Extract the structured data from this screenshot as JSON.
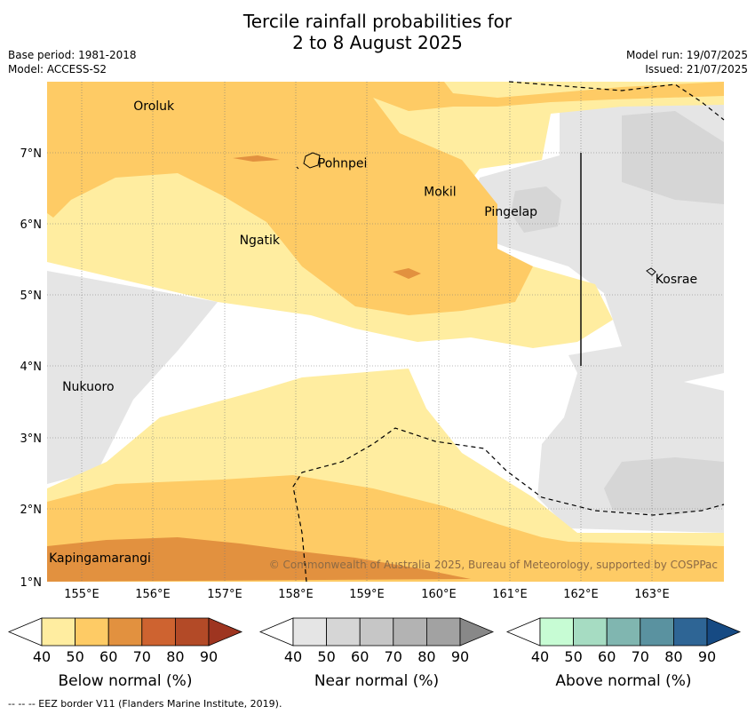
{
  "title_line1": "Tercile rainfall probabilities for",
  "title_line2": "2 to 8 August 2025",
  "base_period": "Base period: 1981-2018",
  "model": "Model: ACCESS-S2",
  "model_run": "Model run: 19/07/2025",
  "issued": "Issued: 21/07/2025",
  "map": {
    "lon_range": [
      154.5,
      164.0
    ],
    "lat_range": [
      1.0,
      8.0
    ],
    "lon_ticks": [
      "155°E",
      "156°E",
      "157°E",
      "158°E",
      "159°E",
      "160°E",
      "161°E",
      "162°E",
      "163°E"
    ],
    "lat_ticks": [
      "1°N",
      "2°N",
      "3°N",
      "4°N",
      "5°N",
      "6°N",
      "7°N"
    ],
    "places": [
      {
        "name": "Oroluk",
        "lon": 155.7,
        "lat": 7.7
      },
      {
        "name": "Pohnpei",
        "lon": 158.2,
        "lat": 6.9
      },
      {
        "name": "Mokil",
        "lon": 159.9,
        "lat": 6.5
      },
      {
        "name": "Pingelap",
        "lon": 160.7,
        "lat": 6.2
      },
      {
        "name": "Ngatik",
        "lon": 157.2,
        "lat": 5.8
      },
      {
        "name": "Kosrae",
        "lon": 163.0,
        "lat": 5.3
      },
      {
        "name": "Nukuoro",
        "lon": 154.8,
        "lat": 3.8
      },
      {
        "name": "Kapingamarangi",
        "lon": 154.8,
        "lat": 1.25
      }
    ],
    "credit": "© Commonwealth of Australia 2025, Bureau of Meteorology, supported by COSPPac"
  },
  "colorbars": [
    {
      "title": "Below normal (%)",
      "ticks": [
        "40",
        "50",
        "60",
        "70",
        "80",
        "90"
      ],
      "colors": [
        "#ffeda0",
        "#fecb65",
        "#e2913f",
        "#ce6330",
        "#b34a27",
        "#9e3520"
      ],
      "arrow": "#9e3520"
    },
    {
      "title": "Near normal (%)",
      "ticks": [
        "40",
        "50",
        "60",
        "70",
        "80",
        "90"
      ],
      "colors": [
        "#e5e5e5",
        "#d6d6d6",
        "#c6c6c6",
        "#b3b3b3",
        "#a2a2a2",
        "#888888"
      ],
      "arrow": "#888888"
    },
    {
      "title": "Above normal (%)",
      "ticks": [
        "40",
        "50",
        "60",
        "70",
        "80",
        "90"
      ],
      "colors": [
        "#c7fcd4",
        "#a6dcc2",
        "#80b6b0",
        "#5a92a0",
        "#2e6595",
        "#164a83"
      ],
      "arrow": "#164a83"
    }
  ],
  "footer": "--  --  -- EEZ border V11 (Flanders Marine Institute, 2019)."
}
